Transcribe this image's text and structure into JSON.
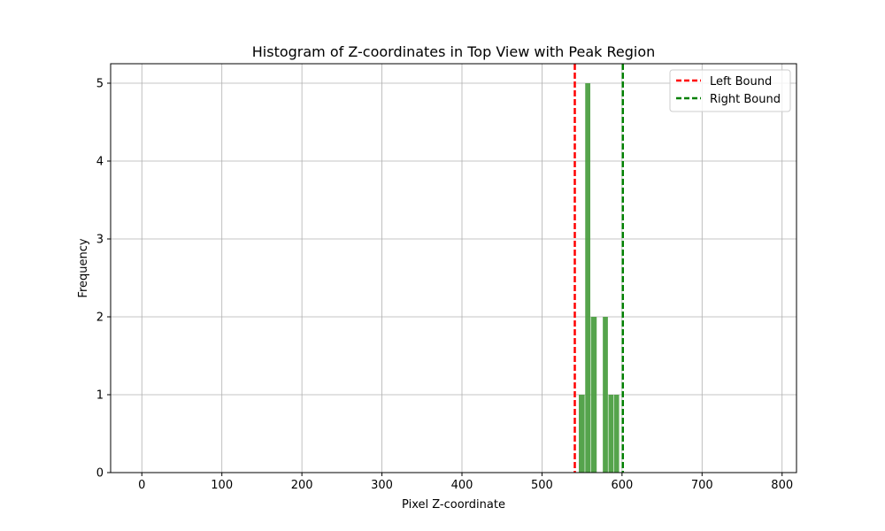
{
  "chart_data": {
    "type": "bar",
    "title": "Histogram of Z-coordinates in Top View with Peak Region",
    "xlabel": "Pixel Z-coordinate",
    "ylabel": "Frequency",
    "xlim": [
      -39,
      818
    ],
    "ylim": [
      0,
      5.25
    ],
    "x_ticks": [
      0,
      100,
      200,
      300,
      400,
      500,
      600,
      700,
      800
    ],
    "y_ticks": [
      0,
      1,
      2,
      3,
      4,
      5
    ],
    "grid": true,
    "legend_position": "top-right",
    "bar_color": "#4c9f42",
    "bins": [
      {
        "x0": 546,
        "x1": 554,
        "value": 1
      },
      {
        "x0": 554,
        "x1": 561,
        "value": 5
      },
      {
        "x0": 561,
        "x1": 569,
        "value": 2
      },
      {
        "x0": 569,
        "x1": 576,
        "value": 0
      },
      {
        "x0": 576,
        "x1": 583,
        "value": 2
      },
      {
        "x0": 583,
        "x1": 590,
        "value": 1
      },
      {
        "x0": 590,
        "x1": 597,
        "value": 1
      }
    ],
    "vlines": [
      {
        "name": "Left Bound",
        "x": 541,
        "color": "#ff0000"
      },
      {
        "name": "Right Bound",
        "x": 601,
        "color": "#008000"
      }
    ]
  }
}
